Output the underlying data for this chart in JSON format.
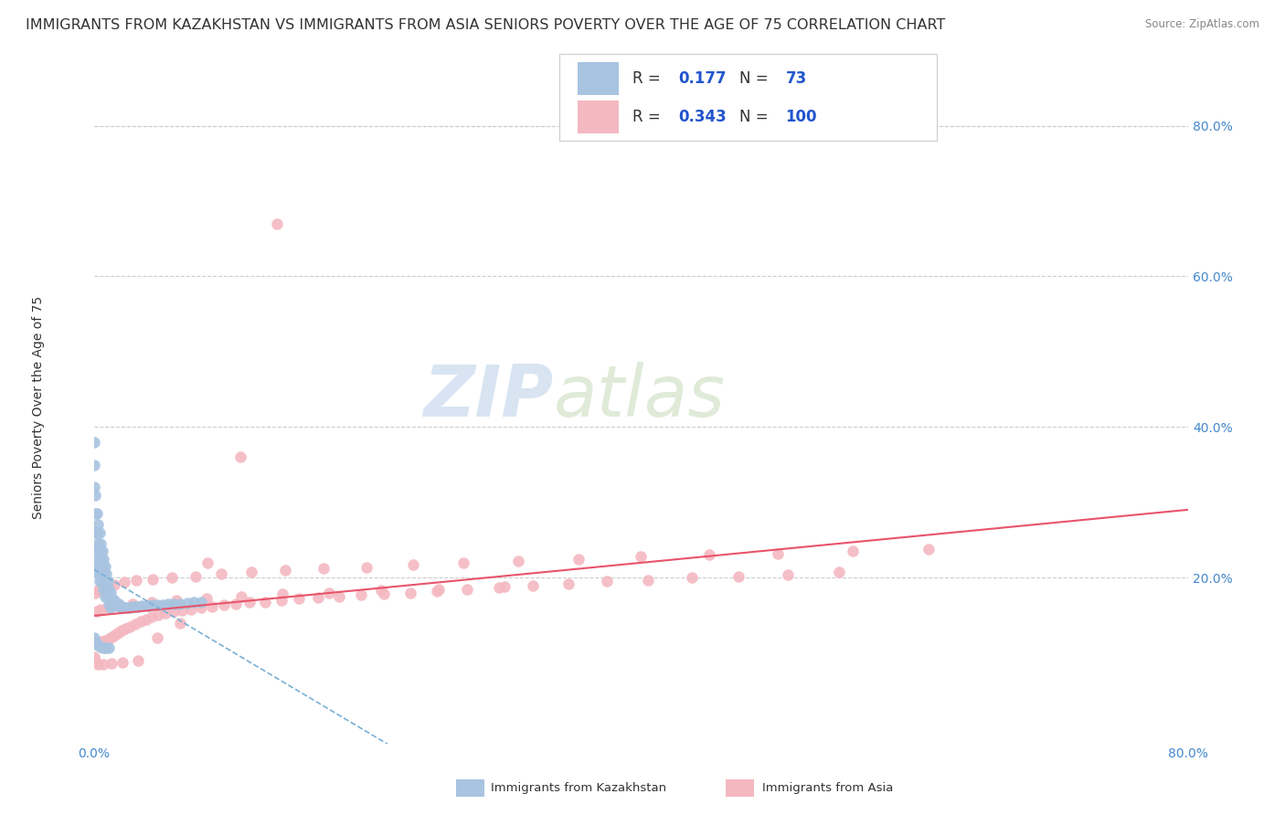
{
  "title": "IMMIGRANTS FROM KAZAKHSTAN VS IMMIGRANTS FROM ASIA SENIORS POVERTY OVER THE AGE OF 75 CORRELATION CHART",
  "source": "Source: ZipAtlas.com",
  "ylabel": "Seniors Poverty Over the Age of 75",
  "xlim": [
    0.0,
    0.8
  ],
  "ylim": [
    -0.02,
    0.9
  ],
  "yticks": [
    0.0,
    0.2,
    0.4,
    0.6,
    0.8
  ],
  "ytick_labels": [
    "",
    "20.0%",
    "40.0%",
    "60.0%",
    "80.0%"
  ],
  "watermark_zip": "ZIP",
  "watermark_atlas": "atlas",
  "series": [
    {
      "name": "Immigrants from Kazakhstan",
      "color": "#a8c4e0",
      "R": 0.177,
      "N": 73,
      "trend_color": "#7aafd4",
      "trend_style": "--",
      "scatter_x": [
        0.0,
        0.0,
        0.0,
        0.001,
        0.001,
        0.001,
        0.001,
        0.002,
        0.002,
        0.002,
        0.002,
        0.003,
        0.003,
        0.003,
        0.003,
        0.004,
        0.004,
        0.004,
        0.004,
        0.005,
        0.005,
        0.005,
        0.006,
        0.006,
        0.006,
        0.007,
        0.007,
        0.007,
        0.008,
        0.008,
        0.008,
        0.009,
        0.009,
        0.01,
        0.01,
        0.011,
        0.011,
        0.012,
        0.012,
        0.013,
        0.014,
        0.015,
        0.016,
        0.017,
        0.018,
        0.019,
        0.02,
        0.022,
        0.024,
        0.026,
        0.028,
        0.03,
        0.032,
        0.035,
        0.038,
        0.04,
        0.043,
        0.046,
        0.05,
        0.054,
        0.058,
        0.063,
        0.068,
        0.073,
        0.078,
        0.0,
        0.001,
        0.002,
        0.003,
        0.005,
        0.007,
        0.009,
        0.011
      ],
      "scatter_y": [
        0.38,
        0.35,
        0.32,
        0.31,
        0.285,
        0.26,
        0.24,
        0.285,
        0.26,
        0.235,
        0.215,
        0.27,
        0.245,
        0.225,
        0.205,
        0.26,
        0.235,
        0.215,
        0.195,
        0.245,
        0.225,
        0.205,
        0.235,
        0.215,
        0.195,
        0.225,
        0.205,
        0.185,
        0.215,
        0.195,
        0.175,
        0.205,
        0.185,
        0.195,
        0.175,
        0.185,
        0.165,
        0.18,
        0.16,
        0.17,
        0.17,
        0.17,
        0.165,
        0.165,
        0.165,
        0.162,
        0.162,
        0.16,
        0.16,
        0.16,
        0.162,
        0.162,
        0.162,
        0.163,
        0.163,
        0.163,
        0.164,
        0.164,
        0.164,
        0.165,
        0.165,
        0.165,
        0.166,
        0.167,
        0.168,
        0.12,
        0.115,
        0.112,
        0.11,
        0.108,
        0.107,
        0.107,
        0.107
      ]
    },
    {
      "name": "Immigrants from Asia",
      "color": "#f4b8c1",
      "R": 0.343,
      "N": 100,
      "trend_color": "#e8546a",
      "trend_style": "-",
      "scatter_x": [
        0.0,
        0.001,
        0.002,
        0.003,
        0.004,
        0.005,
        0.006,
        0.007,
        0.008,
        0.01,
        0.012,
        0.014,
        0.016,
        0.018,
        0.02,
        0.023,
        0.026,
        0.03,
        0.034,
        0.038,
        0.042,
        0.047,
        0.052,
        0.058,
        0.064,
        0.071,
        0.078,
        0.086,
        0.095,
        0.104,
        0.114,
        0.125,
        0.137,
        0.15,
        0.164,
        0.179,
        0.195,
        0.212,
        0.231,
        0.251,
        0.273,
        0.296,
        0.321,
        0.347,
        0.375,
        0.405,
        0.437,
        0.471,
        0.507,
        0.545,
        0.001,
        0.003,
        0.006,
        0.01,
        0.015,
        0.022,
        0.031,
        0.043,
        0.057,
        0.074,
        0.093,
        0.115,
        0.14,
        0.168,
        0.199,
        0.233,
        0.27,
        0.31,
        0.354,
        0.4,
        0.45,
        0.5,
        0.555,
        0.61,
        0.002,
        0.005,
        0.01,
        0.018,
        0.028,
        0.042,
        0.06,
        0.082,
        0.108,
        0.138,
        0.172,
        0.21,
        0.252,
        0.3,
        0.0,
        0.001,
        0.003,
        0.007,
        0.013,
        0.021,
        0.032,
        0.046,
        0.063,
        0.083,
        0.107,
        0.134
      ],
      "scatter_y": [
        0.115,
        0.113,
        0.112,
        0.113,
        0.114,
        0.114,
        0.115,
        0.115,
        0.116,
        0.118,
        0.12,
        0.123,
        0.125,
        0.127,
        0.13,
        0.132,
        0.135,
        0.138,
        0.142,
        0.145,
        0.148,
        0.15,
        0.153,
        0.155,
        0.157,
        0.158,
        0.16,
        0.162,
        0.164,
        0.165,
        0.167,
        0.168,
        0.17,
        0.172,
        0.174,
        0.175,
        0.177,
        0.178,
        0.18,
        0.182,
        0.185,
        0.187,
        0.189,
        0.192,
        0.195,
        0.197,
        0.2,
        0.202,
        0.204,
        0.207,
        0.18,
        0.183,
        0.186,
        0.188,
        0.191,
        0.194,
        0.196,
        0.198,
        0.2,
        0.202,
        0.205,
        0.208,
        0.21,
        0.212,
        0.214,
        0.217,
        0.22,
        0.222,
        0.225,
        0.228,
        0.23,
        0.232,
        0.235,
        0.238,
        0.155,
        0.158,
        0.16,
        0.162,
        0.165,
        0.168,
        0.17,
        0.172,
        0.175,
        0.178,
        0.18,
        0.183,
        0.185,
        0.188,
        0.095,
        0.09,
        0.085,
        0.085,
        0.086,
        0.088,
        0.09,
        0.12,
        0.14,
        0.22,
        0.36,
        0.67
      ]
    }
  ],
  "background_color": "#ffffff",
  "grid_color": "#cccccc",
  "title_fontsize": 11.5,
  "axis_label_fontsize": 10,
  "tick_fontsize": 10,
  "legend_R_color": "#2255cc",
  "legend_N_label_color": "#333333",
  "legend_N_value_color": "#2255cc"
}
